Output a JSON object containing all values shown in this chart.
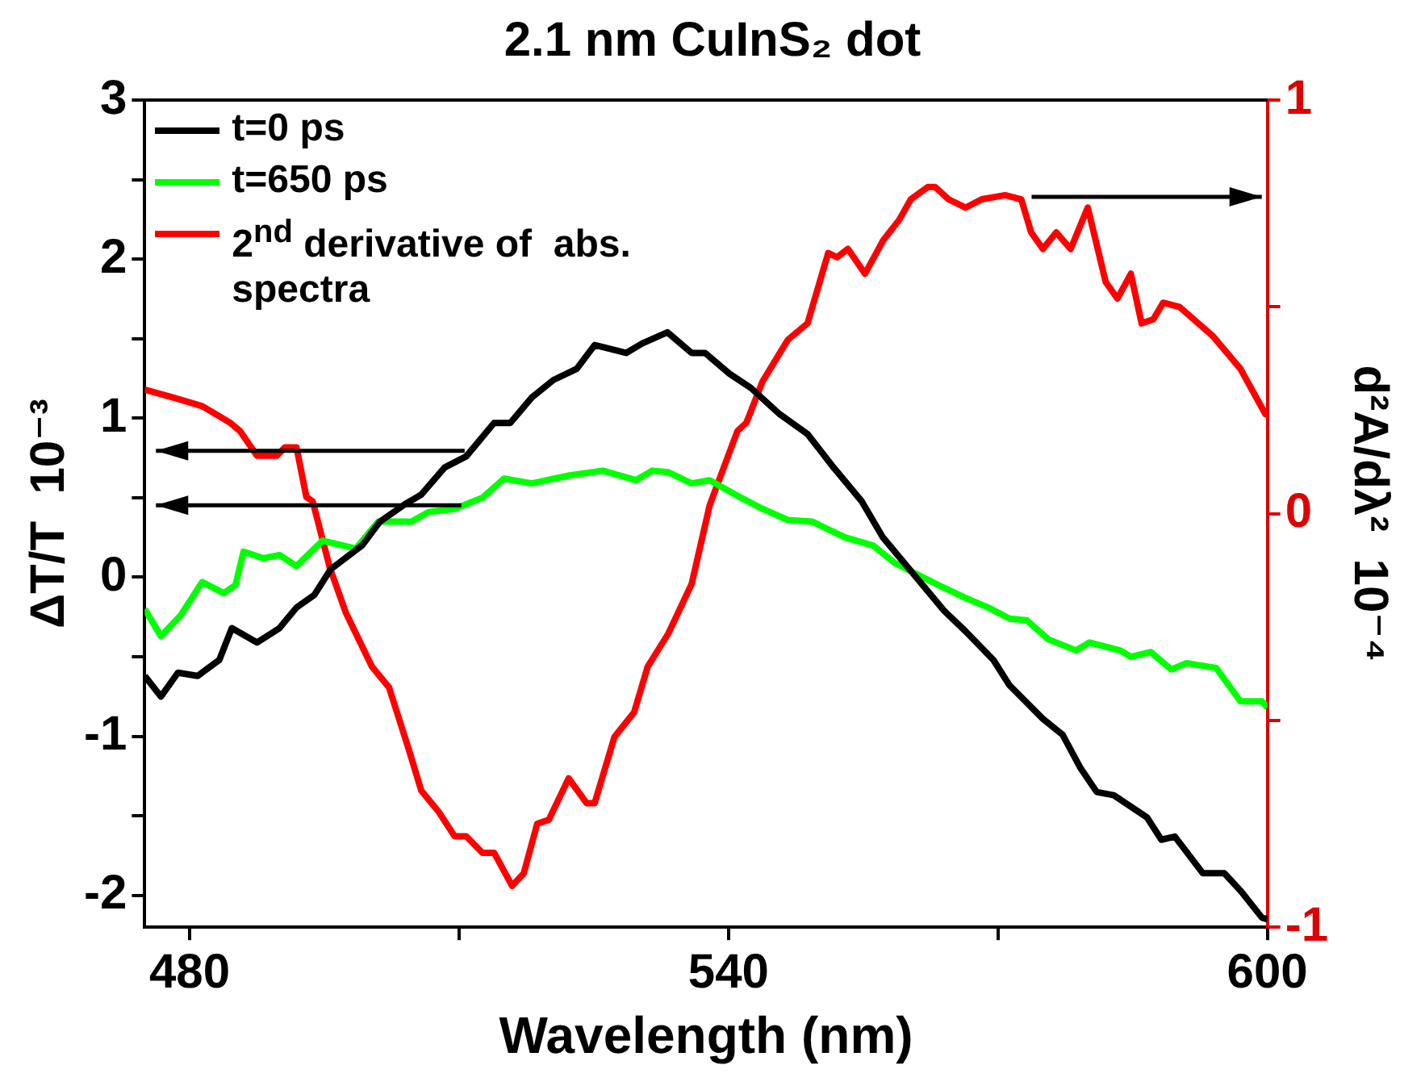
{
  "chart_data": {
    "type": "line",
    "title": "2.1 nm CuInS₂ dot",
    "xlabel": "Wavelength (nm)",
    "ylabel": "ΔT/T  10⁻³",
    "y2label": "d²A/dλ²  10⁻⁴",
    "xlim": [
      475,
      600
    ],
    "xticks": [
      480,
      {
        "value": 510,
        "label": null
      },
      540,
      {
        "value": 570,
        "label": null
      },
      600
    ],
    "ylim": [
      -2.2,
      3
    ],
    "yticks": [
      -2,
      {
        "value": -1.5,
        "label": null
      },
      -1,
      {
        "value": -0.5,
        "label": null
      },
      0,
      {
        "value": 0.5,
        "label": null
      },
      1,
      {
        "value": 1.5,
        "label": null
      },
      2,
      {
        "value": 2.5,
        "label": null
      },
      3
    ],
    "y2lim": [
      -1,
      1
    ],
    "y2ticks": [
      -1,
      {
        "value": -0.5,
        "label": null
      },
      0,
      {
        "value": 0.5,
        "label": null
      },
      1
    ],
    "grid": false,
    "legend": "top left",
    "marker": "none",
    "line_style": "solid",
    "series": [
      {
        "name": "t=0 ps",
        "color": "#000000",
        "x": [
          475,
          476.8,
          478.7,
          480.9,
          483.3,
          484.7,
          487.5,
          490,
          491.9,
          493.9,
          495.7,
          499.2,
          501.2,
          504,
          505.8,
          508.4,
          510.8,
          513.9,
          515.7,
          518.1,
          520.5,
          523.1,
          525.1,
          528.6,
          530.4,
          533.2,
          535.9,
          537.4,
          540.1,
          542.5,
          545.6,
          548.8,
          551.7,
          554.8,
          557.2,
          560.9,
          564,
          566.4,
          569.5,
          571.3,
          575,
          577.2,
          579.2,
          581,
          582.9,
          586.6,
          588.2,
          589.7,
          592.8,
          595.2,
          597,
          599.4,
          600
        ],
        "values": [
          -0.62,
          -0.75,
          -0.6,
          -0.62,
          -0.52,
          -0.32,
          -0.41,
          -0.32,
          -0.19,
          -0.11,
          0.05,
          0.2,
          0.35,
          0.46,
          0.52,
          0.69,
          0.76,
          0.97,
          0.97,
          1.13,
          1.24,
          1.31,
          1.46,
          1.41,
          1.47,
          1.54,
          1.41,
          1.41,
          1.28,
          1.19,
          1.03,
          0.9,
          0.69,
          0.48,
          0.25,
          0,
          -0.21,
          -0.34,
          -0.52,
          -0.68,
          -0.89,
          -0.99,
          -1.2,
          -1.35,
          -1.37,
          -1.51,
          -1.65,
          -1.63,
          -1.86,
          -1.86,
          -1.97,
          -2.14,
          -2.15
        ]
      },
      {
        "name": "t=650 ps",
        "color": "#00ff00",
        "x": [
          475,
          476.8,
          479,
          481.4,
          483.8,
          485.1,
          486,
          488.2,
          490,
          491.9,
          494.8,
          498.5,
          501,
          504.7,
          506.6,
          509.5,
          512.6,
          515,
          518.1,
          522.3,
          526,
          529.7,
          531.5,
          533.3,
          535.9,
          537.9,
          541.4,
          543.8,
          546.6,
          549.3,
          553,
          556.1,
          558.5,
          563.4,
          566.4,
          568.9,
          571.3,
          573.2,
          575.6,
          578.7,
          580.2,
          583.6,
          584.8,
          587,
          589.3,
          591,
          594.3,
          597,
          599.4,
          600
        ],
        "values": [
          -0.2,
          -0.37,
          -0.24,
          -0.03,
          -0.1,
          -0.05,
          0.16,
          0.12,
          0.14,
          0.07,
          0.23,
          0.18,
          0.35,
          0.35,
          0.41,
          0.43,
          0.5,
          0.62,
          0.59,
          0.64,
          0.67,
          0.61,
          0.67,
          0.66,
          0.59,
          0.61,
          0.5,
          0.43,
          0.36,
          0.35,
          0.25,
          0.2,
          0.09,
          -0.05,
          -0.13,
          -0.19,
          -0.26,
          -0.27,
          -0.39,
          -0.46,
          -0.41,
          -0.46,
          -0.5,
          -0.47,
          -0.58,
          -0.54,
          -0.57,
          -0.78,
          -0.78,
          -0.82
        ]
      },
      {
        "name": "2$^{nd}$ derivative of  abs. spectra",
        "color": "#ff0000",
        "axis": "y2",
        "x": [
          475,
          478.3,
          481.4,
          484.5,
          485.6,
          487.5,
          489.7,
          490.6,
          491.9,
          493,
          493.7,
          495.6,
          497.4,
          500.3,
          502.2,
          504.4,
          505.8,
          507.7,
          509.5,
          510.8,
          512.6,
          513.9,
          515.9,
          517.2,
          518.7,
          520,
          522.2,
          524.2,
          525.1,
          527.3,
          529.5,
          531,
          533.3,
          535.9,
          537.9,
          541,
          542,
          543.8,
          546.6,
          548.8,
          551.1,
          552.1,
          553.3,
          555.2,
          557.2,
          559,
          560.3,
          562.2,
          563,
          564.5,
          566.4,
          568.2,
          570.8,
          572.6,
          573.7,
          575,
          576.5,
          578.1,
          580,
          582,
          583.3,
          584.8,
          586,
          587.3,
          588.4,
          590.2,
          593.9,
          597,
          599.8,
          600
        ],
        "values": [
          0.3,
          0.28,
          0.26,
          0.22,
          0.2,
          0.14,
          0.14,
          0.16,
          0.16,
          0.04,
          0.03,
          -0.13,
          -0.24,
          -0.37,
          -0.42,
          -0.57,
          -0.67,
          -0.72,
          -0.78,
          -0.78,
          -0.82,
          -0.82,
          -0.9,
          -0.87,
          -0.75,
          -0.74,
          -0.64,
          -0.7,
          -0.7,
          -0.54,
          -0.48,
          -0.37,
          -0.29,
          -0.17,
          0.02,
          0.2,
          0.22,
          0.32,
          0.42,
          0.46,
          0.63,
          0.62,
          0.64,
          0.58,
          0.66,
          0.71,
          0.76,
          0.79,
          0.79,
          0.76,
          0.74,
          0.76,
          0.77,
          0.76,
          0.68,
          0.64,
          0.68,
          0.64,
          0.74,
          0.56,
          0.52,
          0.58,
          0.46,
          0.47,
          0.51,
          0.5,
          0.43,
          0.35,
          0.24,
          0.24
        ]
      }
    ]
  }
}
